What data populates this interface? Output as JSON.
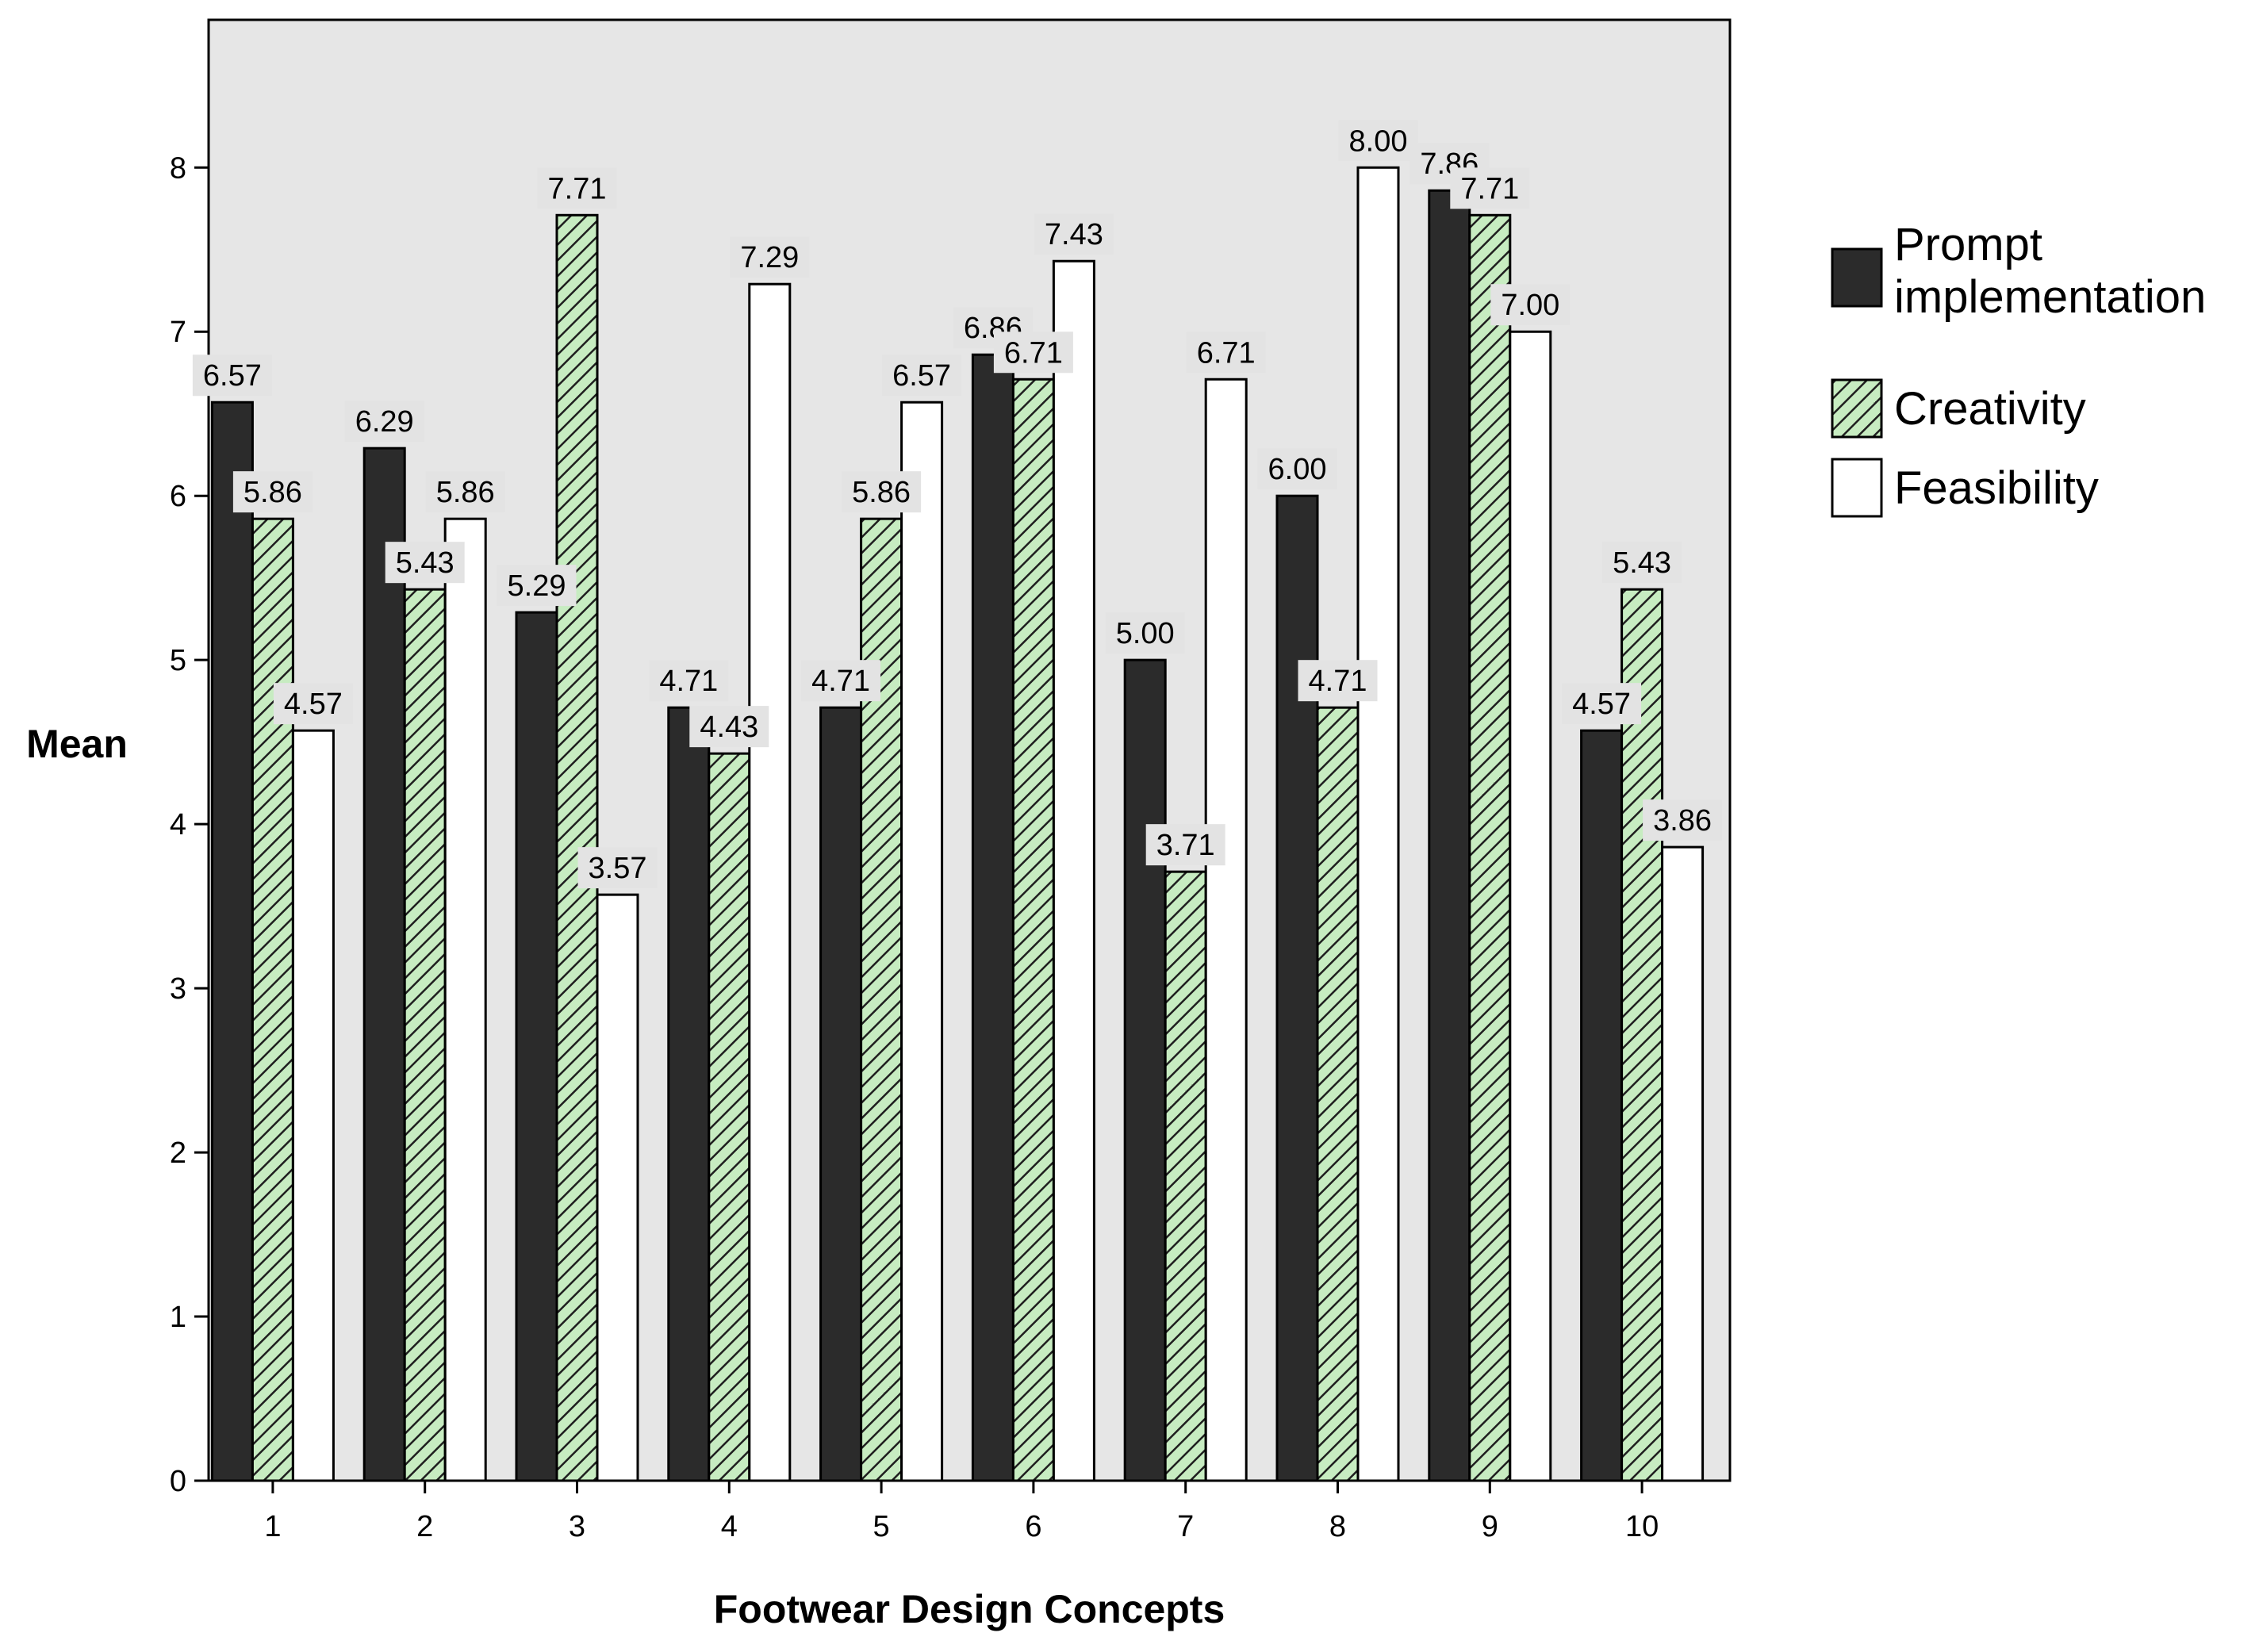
{
  "chart_data": {
    "type": "bar",
    "title": "",
    "xlabel": "Footwear Design Concepts",
    "ylabel": "Mean",
    "categories": [
      "1",
      "2",
      "3",
      "4",
      "5",
      "6",
      "7",
      "8",
      "9",
      "10"
    ],
    "yticks": [
      "0",
      "1",
      "2",
      "3",
      "4",
      "5",
      "6",
      "7",
      "8"
    ],
    "ylim": [
      0,
      8.9
    ],
    "grid": false,
    "legend_position": "right",
    "series": [
      {
        "name": "Prompt implementation",
        "legend_lines": [
          "Prompt",
          "implementation"
        ],
        "values": [
          6.57,
          6.29,
          5.29,
          4.71,
          4.71,
          6.86,
          5.0,
          6.0,
          7.86,
          4.57
        ],
        "labels": [
          "6.57",
          "6.29",
          "5.29",
          "4.71",
          "4.71",
          "6.86",
          "5.00",
          "6.00",
          "7.86",
          "4.57"
        ],
        "color": "#2b2b2b",
        "pattern": "solid"
      },
      {
        "name": "Creativity",
        "legend_lines": [
          "Creativity"
        ],
        "values": [
          5.86,
          5.43,
          7.71,
          4.43,
          5.86,
          6.71,
          3.71,
          4.71,
          7.71,
          5.43
        ],
        "labels": [
          "5.86",
          "5.43",
          "7.71",
          "4.43",
          "5.86",
          "6.71",
          "3.71",
          "4.71",
          "7.71",
          "5.43"
        ],
        "color": "#c7ecc1",
        "pattern": "hatch"
      },
      {
        "name": "Feasibility",
        "legend_lines": [
          "Feasibility"
        ],
        "values": [
          4.57,
          5.86,
          3.57,
          7.29,
          6.57,
          7.43,
          6.71,
          8.0,
          7.0,
          3.86
        ],
        "labels": [
          "4.57",
          "5.86",
          "3.57",
          "7.29",
          "6.57",
          "7.43",
          "6.71",
          "8.00",
          "7.00",
          "3.86"
        ],
        "color": "#ffffff",
        "pattern": "solid"
      }
    ],
    "plot_background": "#e6e6e6",
    "label_box_color": "#e3e3e3"
  }
}
